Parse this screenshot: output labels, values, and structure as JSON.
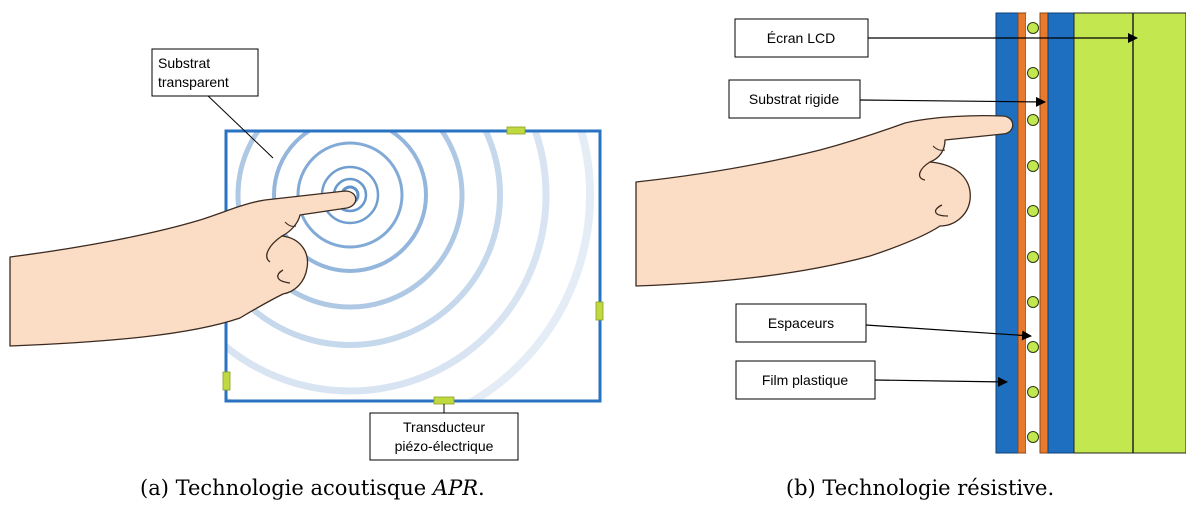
{
  "panel_a": {
    "labels": {
      "substrate_line1": "Substrat",
      "substrate_line2": "transparent",
      "transducer_line1": "Transducteur",
      "transducer_line2": "piézo-électrique"
    },
    "caption_prefix": "(a) Technologie acoutisque ",
    "caption_em": "APR",
    "caption_suffix": "."
  },
  "panel_b": {
    "labels": {
      "lcd": "Écran LCD",
      "rigid": "Substrat rigide",
      "spacers": "Espaceurs",
      "film": "Film plastique"
    },
    "caption": "(b) Technologie résistive."
  },
  "colors": {
    "frame_blue": "#2a73c3",
    "wave_blue": "#4d86c4",
    "transducer_green": "#bfd941",
    "layer_blue": "#1f6fc0",
    "layer_orange": "#e87a2e",
    "lcd_green": "#c3e84f",
    "skin": "#fbdcc4",
    "skin_line": "#3b2a20"
  }
}
